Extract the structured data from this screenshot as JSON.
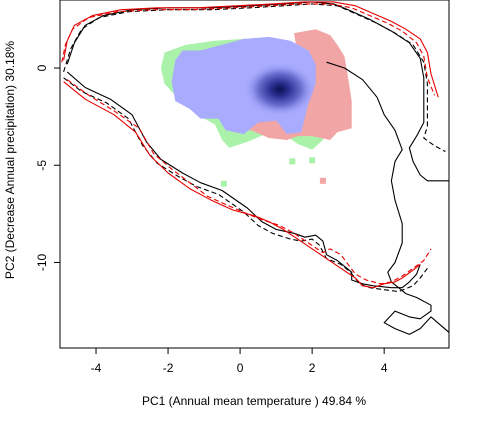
{
  "chart_data": {
    "type": "scatter",
    "title": "",
    "xlabel": "PC1 (Annual mean temperature ) 49.84 %",
    "ylabel": "PC2 (Decrease Annual precipitation) 30.18%",
    "xlim": [
      -5.0,
      5.8
    ],
    "ylim": [
      -14.4,
      3.5
    ],
    "xticks": [
      -4,
      -2,
      0,
      2,
      4
    ],
    "yticks": [
      0,
      -5,
      -10
    ],
    "grid": false,
    "legend": "none",
    "colors": {
      "overlap_blue": "#a9abff",
      "niche_red": "#f2a5a5",
      "niche_green": "#aaf2aa",
      "density_core": "#0b0f52",
      "envelope_black": "#000000",
      "envelope_red": "#e60000"
    },
    "density_blobs": [
      {
        "name": "green",
        "color": "#aaf2aa",
        "polygon": [
          [
            -2.2,
            0.0
          ],
          [
            -2.1,
            0.8
          ],
          [
            -1.5,
            1.2
          ],
          [
            -0.7,
            1.4
          ],
          [
            0.1,
            1.5
          ],
          [
            0.8,
            1.5
          ],
          [
            1.2,
            1.2
          ],
          [
            1.7,
            0.6
          ],
          [
            2.1,
            -0.4
          ],
          [
            2.3,
            -1.4
          ],
          [
            2.4,
            -2.8
          ],
          [
            2.3,
            -3.7
          ],
          [
            2.0,
            -4.2
          ],
          [
            1.6,
            -3.9
          ],
          [
            1.2,
            -3.4
          ],
          [
            0.7,
            -3.4
          ],
          [
            0.2,
            -3.8
          ],
          [
            -0.3,
            -4.1
          ],
          [
            -0.5,
            -3.7
          ],
          [
            -0.7,
            -2.9
          ],
          [
            -1.2,
            -2.4
          ],
          [
            -1.7,
            -1.6
          ],
          [
            -2.1,
            -0.8
          ]
        ],
        "specks": [
          [
            -0.45,
            -5.95
          ],
          [
            1.45,
            -4.8
          ],
          [
            2.0,
            -4.75
          ]
        ]
      },
      {
        "name": "red",
        "color": "#f2a5a5",
        "polygon": [
          [
            1.5,
            1.8
          ],
          [
            2.1,
            2.0
          ],
          [
            2.5,
            1.7
          ],
          [
            2.7,
            1.2
          ],
          [
            2.9,
            0.6
          ],
          [
            3.0,
            -0.5
          ],
          [
            3.1,
            -1.7
          ],
          [
            3.1,
            -3.1
          ],
          [
            2.7,
            -3.3
          ],
          [
            2.5,
            -3.7
          ],
          [
            2.0,
            -3.5
          ],
          [
            1.6,
            -3.5
          ],
          [
            1.3,
            -3.7
          ],
          [
            0.8,
            -3.6
          ],
          [
            0.3,
            -3.2
          ],
          [
            -0.2,
            -3.3
          ],
          [
            -0.4,
            -2.5
          ],
          [
            0.1,
            -2.1
          ],
          [
            0.8,
            -1.9
          ],
          [
            1.3,
            -1.3
          ],
          [
            1.4,
            -0.2
          ],
          [
            1.6,
            0.6
          ]
        ],
        "specks": [
          [
            2.3,
            -5.8
          ]
        ]
      },
      {
        "name": "blue",
        "color": "#a9abff",
        "polygon": [
          [
            -1.8,
            0.4
          ],
          [
            -1.6,
            0.9
          ],
          [
            -1.1,
            0.9
          ],
          [
            -0.5,
            1.2
          ],
          [
            0.1,
            1.5
          ],
          [
            0.8,
            1.6
          ],
          [
            1.4,
            1.4
          ],
          [
            1.9,
            0.9
          ],
          [
            2.1,
            0.2
          ],
          [
            2.1,
            -0.8
          ],
          [
            1.9,
            -1.8
          ],
          [
            1.7,
            -3.3
          ],
          [
            1.3,
            -3.4
          ],
          [
            1.0,
            -2.7
          ],
          [
            0.5,
            -2.8
          ],
          [
            0.1,
            -3.4
          ],
          [
            -0.4,
            -3.2
          ],
          [
            -0.6,
            -2.6
          ],
          [
            -1.1,
            -2.6
          ],
          [
            -1.4,
            -2.1
          ],
          [
            -1.8,
            -1.7
          ],
          [
            -1.9,
            -0.7
          ]
        ],
        "peak": [
          1.1,
          -1.1
        ]
      }
    ],
    "envelopes": [
      {
        "color": "#000000",
        "style": "solid",
        "points": [
          [
            -4.8,
            0.2
          ],
          [
            -4.6,
            1.3
          ],
          [
            -4.3,
            2.2
          ],
          [
            -3.8,
            2.7
          ],
          [
            -3.0,
            3.0
          ],
          [
            -2.0,
            3.1
          ],
          [
            -0.8,
            3.1
          ],
          [
            0.3,
            3.2
          ],
          [
            1.2,
            3.3
          ],
          [
            2.0,
            3.4
          ],
          [
            2.6,
            3.3
          ],
          [
            3.0,
            3.0
          ],
          [
            3.6,
            2.5
          ],
          [
            4.2,
            1.9
          ],
          [
            4.7,
            1.3
          ],
          [
            5.0,
            0.5
          ],
          [
            5.1,
            -0.5
          ],
          [
            5.1,
            -1.8
          ],
          [
            5.1,
            -2.8
          ],
          [
            4.9,
            -3.5
          ],
          [
            4.7,
            -4.1
          ],
          [
            4.8,
            -4.8
          ],
          [
            5.0,
            -5.5
          ],
          [
            5.2,
            -5.8
          ],
          [
            5.8,
            -5.8
          ],
          [
            5.8,
            -13.6
          ],
          [
            5.3,
            -12.8
          ],
          [
            5.0,
            -13.4
          ],
          [
            4.7,
            -13.7
          ],
          [
            4.3,
            -13.4
          ],
          [
            4.0,
            -13.1
          ],
          [
            4.3,
            -12.5
          ],
          [
            4.7,
            -12.8
          ],
          [
            5.0,
            -12.9
          ],
          [
            5.3,
            -12.5
          ],
          [
            5.3,
            -12.2
          ],
          [
            4.9,
            -11.8
          ],
          [
            4.6,
            -11.6
          ],
          [
            4.4,
            -11.3
          ],
          [
            4.2,
            -11.0
          ],
          [
            4.1,
            -10.5
          ],
          [
            4.3,
            -10.0
          ],
          [
            4.5,
            -9.0
          ],
          [
            4.5,
            -8.0
          ],
          [
            4.3,
            -6.8
          ],
          [
            4.2,
            -5.8
          ],
          [
            4.3,
            -4.8
          ],
          [
            4.5,
            -4.2
          ],
          [
            4.3,
            -3.2
          ],
          [
            4.0,
            -2.4
          ],
          [
            3.8,
            -1.5
          ],
          [
            3.4,
            -0.6
          ],
          [
            2.9,
            0.0
          ],
          [
            2.4,
            0.3
          ]
        ],
        "open": true
      },
      {
        "color": "#000000",
        "style": "dashed",
        "points": [
          [
            -4.9,
            -0.2
          ],
          [
            -4.7,
            1.0
          ],
          [
            -4.4,
            2.0
          ],
          [
            -3.9,
            2.6
          ],
          [
            -3.1,
            2.9
          ],
          [
            -2.0,
            3.0
          ],
          [
            -0.8,
            3.0
          ],
          [
            0.3,
            3.1
          ],
          [
            1.2,
            3.2
          ],
          [
            2.0,
            3.3
          ],
          [
            2.7,
            3.2
          ],
          [
            3.2,
            2.8
          ],
          [
            3.8,
            2.3
          ],
          [
            4.3,
            1.8
          ],
          [
            4.8,
            1.2
          ],
          [
            5.1,
            0.3
          ],
          [
            5.2,
            -0.8
          ],
          [
            5.2,
            -2.0
          ],
          [
            5.2,
            -3.0
          ],
          [
            5.1,
            -3.6
          ],
          [
            5.4,
            -4.0
          ],
          [
            5.7,
            -4.3
          ]
        ]
      },
      {
        "color": "#e60000",
        "style": "solid",
        "points": [
          [
            -4.9,
            0.4
          ],
          [
            -4.8,
            1.4
          ],
          [
            -4.6,
            2.2
          ],
          [
            -4.1,
            2.7
          ],
          [
            -3.3,
            3.0
          ],
          [
            -2.3,
            3.1
          ],
          [
            -1.2,
            3.1
          ],
          [
            -0.1,
            3.2
          ],
          [
            0.9,
            3.3
          ],
          [
            1.8,
            3.4
          ],
          [
            2.6,
            3.4
          ],
          [
            3.2,
            3.2
          ],
          [
            3.7,
            2.8
          ],
          [
            4.2,
            2.4
          ],
          [
            4.6,
            2.0
          ],
          [
            5.0,
            1.5
          ],
          [
            5.2,
            0.8
          ],
          [
            5.3,
            -0.3
          ],
          [
            5.5,
            -1.5
          ]
        ]
      },
      {
        "color": "#e60000",
        "style": "dashed",
        "points": [
          [
            -4.95,
            0.3
          ],
          [
            -4.85,
            1.2
          ],
          [
            -4.65,
            2.0
          ],
          [
            -4.2,
            2.6
          ],
          [
            -3.4,
            2.9
          ],
          [
            -2.4,
            3.0
          ],
          [
            -1.3,
            3.0
          ],
          [
            -0.2,
            3.1
          ],
          [
            0.8,
            3.2
          ],
          [
            1.7,
            3.3
          ],
          [
            2.5,
            3.3
          ],
          [
            3.1,
            3.1
          ],
          [
            3.6,
            2.7
          ],
          [
            4.1,
            2.3
          ],
          [
            4.5,
            1.9
          ],
          [
            4.9,
            1.3
          ],
          [
            5.1,
            0.6
          ],
          [
            5.2,
            -0.5
          ],
          [
            5.4,
            -1.4
          ]
        ]
      },
      {
        "color": "#000000",
        "style": "solid",
        "points": [
          [
            -4.8,
            -0.2
          ],
          [
            -4.3,
            -1.0
          ],
          [
            -3.6,
            -1.6
          ],
          [
            -3.0,
            -2.4
          ],
          [
            -2.6,
            -3.8
          ],
          [
            -2.2,
            -4.7
          ],
          [
            -1.6,
            -5.4
          ],
          [
            -1.1,
            -5.9
          ],
          [
            -0.5,
            -6.3
          ],
          [
            0.2,
            -7.2
          ],
          [
            0.6,
            -7.9
          ],
          [
            1.0,
            -8.3
          ],
          [
            1.5,
            -8.5
          ],
          [
            1.8,
            -8.7
          ],
          [
            2.1,
            -8.6
          ],
          [
            2.3,
            -8.9
          ],
          [
            2.4,
            -9.6
          ],
          [
            2.7,
            -9.9
          ],
          [
            2.9,
            -10.2
          ],
          [
            3.1,
            -10.5
          ],
          [
            3.1,
            -10.9
          ],
          [
            3.4,
            -11.1
          ],
          [
            3.7,
            -11.2
          ],
          [
            4.2,
            -11.3
          ],
          [
            4.5,
            -11.3
          ],
          [
            4.7,
            -11.0
          ],
          [
            4.9,
            -10.6
          ],
          [
            5.0,
            -10.1
          ]
        ]
      },
      {
        "color": "#000000",
        "style": "dashed",
        "points": [
          [
            -4.9,
            -0.5
          ],
          [
            -4.4,
            -1.2
          ],
          [
            -3.7,
            -1.8
          ],
          [
            -3.1,
            -2.6
          ],
          [
            -2.7,
            -4.0
          ],
          [
            -2.3,
            -4.9
          ],
          [
            -1.7,
            -5.6
          ],
          [
            -1.2,
            -6.1
          ],
          [
            -0.6,
            -6.5
          ],
          [
            0.1,
            -7.4
          ],
          [
            0.5,
            -8.1
          ],
          [
            0.9,
            -8.5
          ],
          [
            1.4,
            -8.8
          ],
          [
            1.7,
            -8.9
          ],
          [
            2.0,
            -8.8
          ],
          [
            2.2,
            -9.1
          ],
          [
            2.4,
            -9.8
          ],
          [
            2.8,
            -10.1
          ],
          [
            3.0,
            -10.4
          ],
          [
            3.2,
            -10.8
          ],
          [
            3.3,
            -11.1
          ],
          [
            3.6,
            -11.3
          ],
          [
            4.0,
            -11.4
          ],
          [
            4.4,
            -11.5
          ],
          [
            4.8,
            -11.2
          ],
          [
            5.0,
            -10.8
          ],
          [
            5.2,
            -10.3
          ]
        ]
      },
      {
        "color": "#e60000",
        "style": "solid",
        "points": [
          [
            -4.9,
            -0.7
          ],
          [
            -4.3,
            -1.6
          ],
          [
            -3.5,
            -2.4
          ],
          [
            -2.9,
            -3.3
          ],
          [
            -2.5,
            -4.5
          ],
          [
            -2.0,
            -5.4
          ],
          [
            -1.4,
            -6.2
          ],
          [
            -0.8,
            -6.8
          ],
          [
            -0.2,
            -7.3
          ],
          [
            0.4,
            -7.6
          ],
          [
            0.8,
            -7.9
          ],
          [
            1.2,
            -8.3
          ],
          [
            1.6,
            -8.8
          ],
          [
            2.0,
            -9.3
          ],
          [
            2.4,
            -9.8
          ],
          [
            2.8,
            -10.3
          ],
          [
            3.2,
            -10.8
          ],
          [
            3.4,
            -11.2
          ],
          [
            3.7,
            -11.3
          ],
          [
            4.0,
            -11.1
          ],
          [
            4.3,
            -11.0
          ],
          [
            4.5,
            -10.8
          ],
          [
            4.8,
            -10.4
          ],
          [
            5.0,
            -10.1
          ]
        ]
      },
      {
        "color": "#e60000",
        "style": "dashed",
        "points": [
          [
            -4.8,
            -0.6
          ],
          [
            -4.2,
            -1.4
          ],
          [
            -3.5,
            -2.2
          ],
          [
            -2.8,
            -3.1
          ],
          [
            -2.4,
            -4.4
          ],
          [
            -1.9,
            -5.2
          ],
          [
            -1.4,
            -5.9
          ],
          [
            -0.9,
            -6.6
          ],
          [
            -0.3,
            -7.1
          ],
          [
            0.2,
            -7.5
          ],
          [
            0.6,
            -7.8
          ],
          [
            1.1,
            -8.1
          ],
          [
            1.5,
            -8.5
          ],
          [
            1.9,
            -9.0
          ],
          [
            2.3,
            -9.5
          ],
          [
            2.5,
            -9.3
          ],
          [
            2.8,
            -9.6
          ],
          [
            3.0,
            -10.1
          ],
          [
            3.2,
            -10.6
          ],
          [
            3.5,
            -10.9
          ],
          [
            3.9,
            -11.1
          ],
          [
            4.2,
            -11.0
          ],
          [
            4.5,
            -10.7
          ],
          [
            4.8,
            -10.3
          ],
          [
            5.1,
            -9.9
          ],
          [
            5.3,
            -9.3
          ]
        ]
      }
    ]
  }
}
